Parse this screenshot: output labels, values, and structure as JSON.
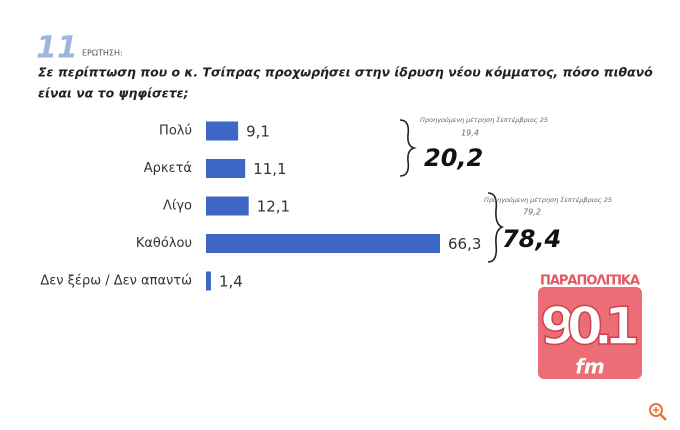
{
  "chart_data": {
    "type": "bar",
    "orientation": "horizontal",
    "question_number": "11",
    "question_label": "ΕΡΩΤΗΣΗ:",
    "title": "Σε περίπτωση που ο κ. Τσίπρας προχωρήσει στην ίδρυση νέου κόμματος, πόσο πιθανό",
    "title_line2": "είναι να το ψηφίσετε;",
    "categories": [
      "Πολύ",
      "Αρκετά",
      "Λίγο",
      "Καθόλου",
      "Δεν ξέρω / Δεν απαντώ"
    ],
    "values": [
      9.1,
      11.1,
      12.1,
      66.3,
      1.4
    ],
    "value_labels": [
      "9,1",
      "11,1",
      "12,1",
      "66,3",
      "1,4"
    ],
    "color": "#3d66c6",
    "annotations": [
      {
        "note": "Προηγούμενη μέτρηση Σεπτέμβριος 25",
        "previous": "19,4",
        "total": "20,2"
      },
      {
        "note": "Προηγούμενη μέτρηση Σεπτέμβριος 25",
        "previous": "79,2",
        "total": "78,4"
      }
    ],
    "logo": {
      "name": "ΠΑΡΑΠΟΛΙΤΙΚΑ",
      "frequency": "90.1",
      "band": "fm"
    }
  }
}
